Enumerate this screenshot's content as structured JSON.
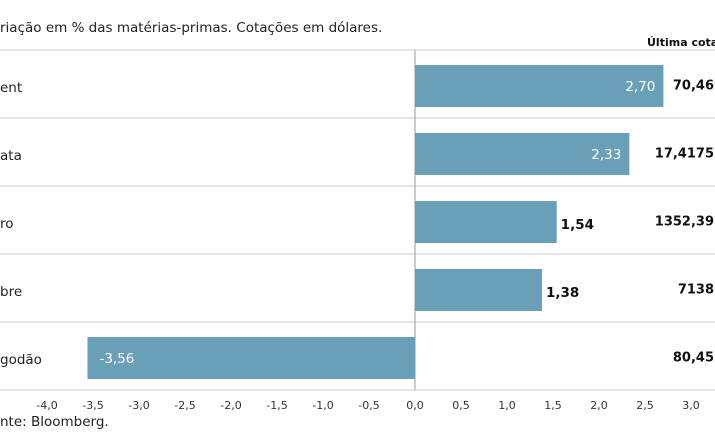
{
  "header": {
    "subtitle": "riação em % das matérias-primas. Cotações em dólares.",
    "last_quote_header": "Última cotaç"
  },
  "footer": {
    "source": "nte: Bloomberg."
  },
  "chart_data": {
    "type": "bar",
    "orientation": "horizontal",
    "title": "",
    "subtitle": "riação em % das matérias-primas. Cotações em dólares.",
    "categories": [
      "ent",
      "ata",
      "ro",
      "bre",
      "godão"
    ],
    "values": [
      2.7,
      2.33,
      1.54,
      1.38,
      -3.56
    ],
    "value_labels": [
      "2,70",
      "2,33",
      "1,54",
      "1,38",
      "-3,56"
    ],
    "last_quotes": [
      "70,46",
      "17,4175",
      "1352,39",
      "7138",
      "80,45"
    ],
    "xlim": [
      -4.0,
      3.0
    ],
    "xticks": [
      -4.0,
      -3.5,
      -3.0,
      -2.5,
      -2.0,
      -1.5,
      -1.0,
      -0.5,
      0.0,
      0.5,
      1.0,
      1.5,
      2.0,
      2.5,
      3.0
    ],
    "xtick_labels": [
      "-4,0",
      "-3,5",
      "-3,0",
      "-2,5",
      "-2,0",
      "-1,5",
      "-1,0",
      "-0,5",
      "0,0",
      "0,5",
      "1,0",
      "1,5",
      "2,0",
      "2,5",
      "3,0"
    ],
    "label_inside_bar": [
      true,
      true,
      false,
      false,
      true
    ],
    "grid": "horizontal row separators",
    "colors": {
      "bar": "#6a9fb8",
      "separator": "#cfcfcf",
      "zero_line": "#9a9a9a"
    }
  }
}
